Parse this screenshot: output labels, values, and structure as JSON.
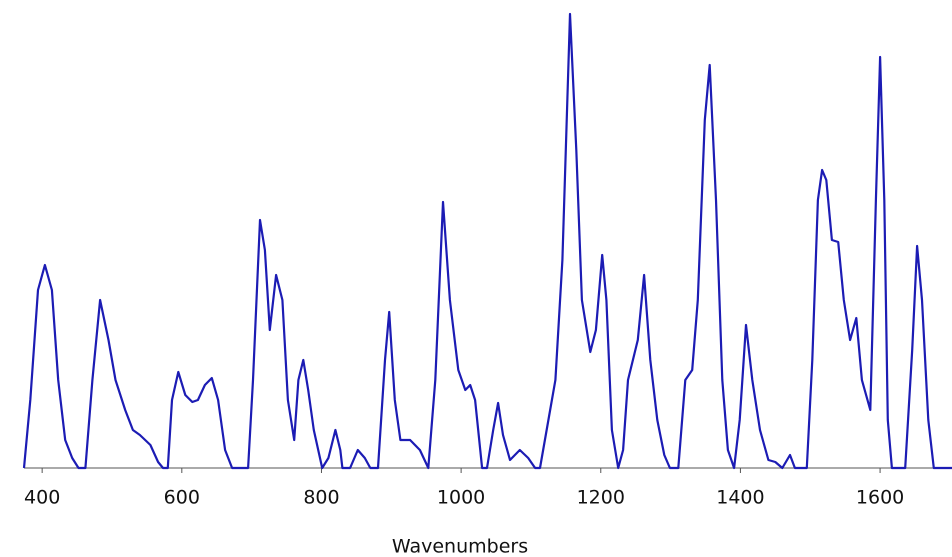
{
  "chart_data": {
    "type": "line",
    "xlabel": "Wavenumbers",
    "xlim": [
      374,
      1703
    ],
    "ylim": [
      0,
      454
    ],
    "xticks": [
      400,
      600,
      800,
      1000,
      1200,
      1400,
      1600
    ],
    "color": "#1c1cb4",
    "x": [
      374,
      383,
      394,
      404,
      414,
      423,
      433,
      443,
      452,
      462,
      472,
      483,
      495,
      505,
      519,
      530,
      540,
      555,
      566,
      573,
      580,
      586,
      595,
      605,
      615,
      623,
      633,
      643,
      652,
      662,
      672,
      695,
      702,
      712,
      719,
      726,
      735,
      744,
      752,
      761,
      767,
      774,
      781,
      789,
      801,
      810,
      820,
      827,
      830,
      841,
      852,
      862,
      870,
      881,
      891,
      897,
      905,
      913,
      927,
      941,
      953,
      963,
      974,
      984,
      996,
      1006,
      1013,
      1020,
      1030,
      1037,
      1046,
      1053,
      1060,
      1070,
      1084,
      1096,
      1106,
      1113,
      1125,
      1135,
      1145,
      1156,
      1165,
      1173,
      1185,
      1193,
      1202,
      1208,
      1216,
      1225,
      1232,
      1239,
      1253,
      1262,
      1271,
      1281,
      1291,
      1299,
      1311,
      1321,
      1331,
      1339,
      1349,
      1356,
      1365,
      1374,
      1382,
      1391,
      1399,
      1408,
      1417,
      1428,
      1440,
      1450,
      1460,
      1471,
      1478,
      1495,
      1503,
      1511,
      1517,
      1523,
      1531,
      1540,
      1548,
      1557,
      1566,
      1574,
      1586,
      1594,
      1600,
      1606,
      1611,
      1617,
      1636,
      1646,
      1653,
      1660,
      1669,
      1677,
      1703
    ],
    "values": [
      0,
      68,
      178,
      203,
      178,
      88,
      28,
      10,
      0,
      0,
      88,
      168,
      128,
      88,
      58,
      38,
      33,
      23,
      6,
      0,
      0,
      68,
      96,
      73,
      66,
      68,
      83,
      90,
      68,
      18,
      0,
      0,
      88,
      248,
      218,
      138,
      193,
      168,
      68,
      28,
      88,
      108,
      78,
      38,
      0,
      10,
      38,
      18,
      0,
      0,
      18,
      10,
      0,
      0,
      108,
      156,
      68,
      28,
      28,
      18,
      0,
      88,
      266,
      168,
      98,
      78,
      83,
      68,
      0,
      0,
      38,
      65,
      33,
      8,
      18,
      10,
      0,
      0,
      48,
      88,
      208,
      454,
      318,
      168,
      116,
      138,
      213,
      168,
      38,
      0,
      18,
      88,
      128,
      193,
      108,
      48,
      13,
      0,
      0,
      88,
      98,
      168,
      348,
      403,
      268,
      88,
      18,
      0,
      48,
      143,
      88,
      38,
      8,
      6,
      0,
      13,
      0,
      0,
      108,
      268,
      298,
      288,
      228,
      226,
      168,
      128,
      150,
      88,
      58,
      268,
      411,
      268,
      48,
      0,
      0,
      118,
      222,
      168,
      48,
      0,
      0
    ]
  }
}
